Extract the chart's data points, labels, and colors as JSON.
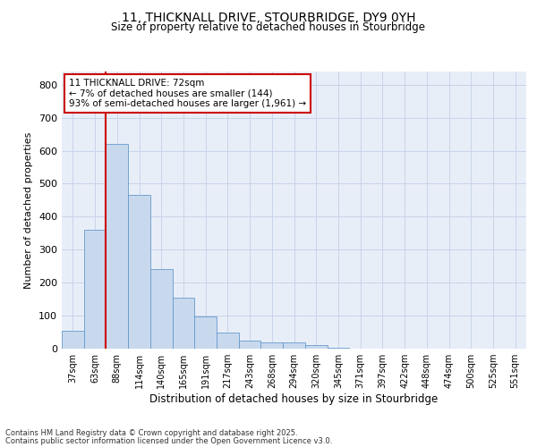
{
  "title_line1": "11, THICKNALL DRIVE, STOURBRIDGE, DY9 0YH",
  "title_line2": "Size of property relative to detached houses in Stourbridge",
  "xlabel": "Distribution of detached houses by size in Stourbridge",
  "ylabel": "Number of detached properties",
  "categories": [
    "37sqm",
    "63sqm",
    "88sqm",
    "114sqm",
    "140sqm",
    "165sqm",
    "191sqm",
    "217sqm",
    "243sqm",
    "268sqm",
    "294sqm",
    "320sqm",
    "345sqm",
    "371sqm",
    "397sqm",
    "422sqm",
    "448sqm",
    "474sqm",
    "500sqm",
    "525sqm",
    "551sqm"
  ],
  "values": [
    55,
    360,
    620,
    465,
    240,
    155,
    97,
    48,
    25,
    20,
    18,
    12,
    3,
    1,
    1,
    0.5,
    0.5,
    0.5,
    0.5,
    0.5,
    0.5
  ],
  "bar_color": "#c8d9ee",
  "bar_edge_color": "#6699cc",
  "grid_color": "#c8d4e8",
  "bg_color": "#e8eef8",
  "red_line_x": 1.5,
  "red_line_color": "#cc0000",
  "annotation_text": "11 THICKNALL DRIVE: 72sqm\n← 7% of detached houses are smaller (144)\n93% of semi-detached houses are larger (1,961) →",
  "annotation_box_color": "#cc0000",
  "ylim": [
    0,
    840
  ],
  "yticks": [
    0,
    100,
    200,
    300,
    400,
    500,
    600,
    700,
    800
  ],
  "footer_line1": "Contains HM Land Registry data © Crown copyright and database right 2025.",
  "footer_line2": "Contains public sector information licensed under the Open Government Licence v3.0.",
  "title_fontsize": 10,
  "subtitle_fontsize": 8.5,
  "axis_label_fontsize": 8,
  "tick_fontsize": 7,
  "footer_fontsize": 6
}
